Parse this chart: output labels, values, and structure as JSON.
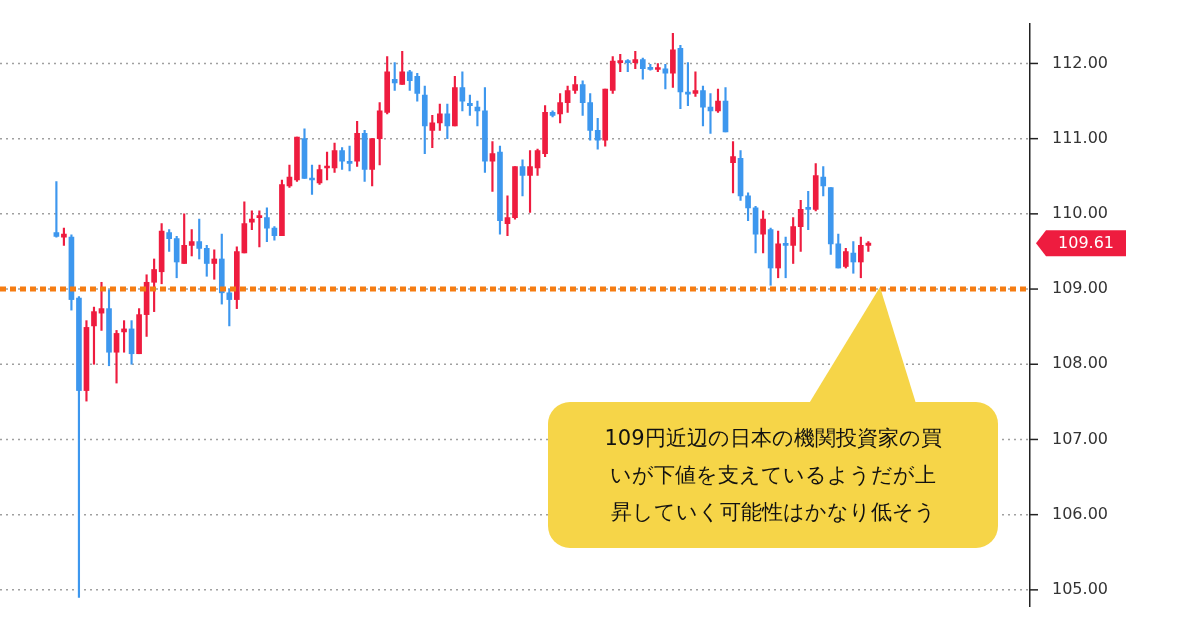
{
  "chart_data": {
    "type": "candlestick",
    "categories": [
      null,
      null,
      null,
      null,
      null,
      null,
      null,
      null,
      null,
      null,
      null,
      null,
      null,
      null,
      null,
      null,
      null,
      null,
      null,
      null,
      null,
      null,
      null,
      null,
      null,
      null,
      null,
      null,
      null,
      null,
      null,
      null,
      null,
      null,
      null,
      null,
      null,
      null,
      null,
      null,
      null,
      null,
      null,
      null,
      null,
      null,
      null,
      null,
      null,
      null,
      null,
      null,
      null,
      null,
      null,
      null,
      null,
      null,
      null,
      null,
      null,
      null,
      null,
      null,
      null,
      null,
      null,
      null,
      null,
      null,
      null,
      null,
      null,
      null,
      null,
      null,
      null,
      null,
      null,
      null,
      null,
      null,
      null,
      null,
      null,
      null,
      null,
      null,
      null,
      null,
      null,
      null,
      null,
      null,
      null,
      null,
      null,
      null,
      null,
      null,
      null,
      null,
      null,
      null,
      null,
      null,
      null,
      null,
      null,
      null,
      null,
      null,
      null,
      null,
      null,
      null,
      null,
      null,
      null,
      null,
      null,
      null,
      null,
      null,
      null,
      null,
      null,
      null,
      null,
      null,
      null,
      null,
      null,
      null,
      null,
      null,
      null
    ],
    "ohlc": [
      null,
      null,
      null,
      null,
      null,
      null,
      null,
      [
        109.75,
        110.43,
        109.69,
        109.7
      ],
      [
        109.69,
        109.81,
        109.58,
        109.73
      ],
      [
        109.69,
        109.72,
        108.72,
        108.86
      ],
      [
        108.88,
        108.9,
        104.9,
        107.65
      ],
      [
        107.65,
        108.58,
        107.51,
        108.49
      ],
      [
        108.51,
        108.76,
        108.0,
        108.7
      ],
      [
        108.68,
        109.09,
        108.45,
        108.74
      ],
      [
        108.74,
        108.99,
        107.98,
        108.16
      ],
      [
        108.16,
        108.45,
        107.75,
        108.41
      ],
      [
        108.43,
        108.58,
        108.16,
        108.47
      ],
      [
        108.47,
        108.58,
        108.0,
        108.14
      ],
      [
        108.14,
        108.74,
        108.14,
        108.66
      ],
      [
        108.66,
        109.19,
        108.37,
        109.09
      ],
      [
        109.09,
        109.4,
        108.7,
        109.26
      ],
      [
        109.23,
        109.87,
        109.07,
        109.77
      ],
      [
        109.75,
        109.79,
        109.5,
        109.67
      ],
      [
        109.67,
        109.7,
        109.15,
        109.36
      ],
      [
        109.34,
        110.0,
        109.34,
        109.58
      ],
      [
        109.58,
        109.79,
        109.44,
        109.63
      ],
      [
        109.63,
        109.93,
        109.4,
        109.54
      ],
      [
        109.54,
        109.58,
        109.17,
        109.34
      ],
      [
        109.34,
        109.52,
        109.13,
        109.4
      ],
      [
        109.4,
        109.73,
        108.8,
        108.95
      ],
      [
        108.95,
        109.0,
        108.51,
        108.86
      ],
      [
        108.86,
        109.56,
        108.74,
        109.5
      ],
      [
        109.48,
        110.16,
        109.48,
        109.87
      ],
      [
        109.89,
        110.04,
        109.79,
        109.93
      ],
      [
        109.95,
        110.04,
        109.56,
        109.97
      ],
      [
        109.95,
        110.08,
        109.63,
        109.81
      ],
      [
        109.81,
        109.83,
        109.65,
        109.71
      ],
      [
        109.71,
        110.45,
        109.71,
        110.39
      ],
      [
        110.37,
        110.65,
        110.35,
        110.49
      ],
      [
        110.45,
        111.02,
        110.43,
        111.02
      ],
      [
        111.0,
        111.13,
        110.47,
        110.47
      ],
      [
        110.47,
        110.65,
        110.26,
        110.45
      ],
      [
        110.41,
        110.65,
        110.39,
        110.59
      ],
      [
        110.61,
        110.82,
        110.45,
        110.63
      ],
      [
        110.61,
        110.94,
        110.55,
        110.84
      ],
      [
        110.84,
        110.88,
        110.59,
        110.7
      ],
      [
        110.7,
        110.9,
        110.57,
        110.67
      ],
      [
        110.7,
        111.23,
        110.63,
        111.07
      ],
      [
        111.07,
        111.11,
        110.43,
        110.59
      ],
      [
        110.59,
        111.0,
        110.37,
        111.0
      ],
      [
        111.0,
        111.48,
        110.65,
        111.37
      ],
      [
        111.35,
        112.09,
        111.33,
        111.89
      ],
      [
        111.79,
        112.01,
        111.64,
        111.74
      ],
      [
        111.72,
        112.16,
        111.72,
        111.89
      ],
      [
        111.89,
        111.91,
        111.64,
        111.77
      ],
      [
        111.83,
        111.87,
        111.5,
        111.6
      ],
      [
        111.58,
        111.7,
        110.8,
        111.17
      ],
      [
        111.11,
        111.31,
        110.88,
        111.21
      ],
      [
        111.21,
        111.46,
        111.11,
        111.33
      ],
      [
        111.33,
        111.46,
        111.0,
        111.17
      ],
      [
        111.17,
        111.83,
        111.17,
        111.68
      ],
      [
        111.68,
        111.89,
        111.37,
        111.5
      ],
      [
        111.47,
        111.58,
        111.31,
        111.44
      ],
      [
        111.42,
        111.5,
        111.17,
        111.37
      ],
      [
        111.37,
        111.68,
        110.55,
        110.7
      ],
      [
        110.7,
        110.96,
        110.3,
        110.8
      ],
      [
        110.82,
        110.9,
        109.73,
        109.91
      ],
      [
        109.87,
        110.24,
        109.71,
        109.95
      ],
      [
        109.95,
        110.63,
        109.93,
        110.63
      ],
      [
        110.63,
        110.72,
        110.24,
        110.51
      ],
      [
        110.51,
        110.84,
        110.02,
        110.63
      ],
      [
        110.61,
        110.86,
        110.51,
        110.84
      ],
      [
        110.8,
        111.44,
        110.76,
        111.35
      ],
      [
        111.35,
        111.37,
        111.29,
        111.31
      ],
      [
        111.33,
        111.6,
        111.21,
        111.48
      ],
      [
        111.48,
        111.7,
        111.35,
        111.64
      ],
      [
        111.64,
        111.83,
        111.6,
        111.72
      ],
      [
        111.72,
        111.77,
        111.31,
        111.48
      ],
      [
        111.48,
        111.6,
        110.98,
        111.11
      ],
      [
        111.11,
        111.27,
        110.86,
        110.98
      ],
      [
        110.98,
        111.66,
        110.9,
        111.66
      ],
      [
        111.64,
        112.09,
        111.6,
        112.03
      ],
      [
        112.01,
        112.12,
        111.89,
        112.03
      ],
      [
        112.03,
        112.05,
        111.89,
        112.01
      ],
      [
        112.01,
        112.16,
        111.93,
        112.05
      ],
      [
        112.05,
        112.07,
        111.79,
        111.93
      ],
      [
        111.95,
        111.99,
        111.91,
        111.92
      ],
      [
        111.92,
        112.0,
        111.89,
        111.94
      ],
      [
        111.93,
        111.99,
        111.66,
        111.87
      ],
      [
        111.87,
        112.4,
        111.68,
        112.18
      ],
      [
        112.2,
        112.24,
        111.4,
        111.62
      ],
      [
        111.62,
        112.01,
        111.44,
        111.59
      ],
      [
        111.6,
        111.89,
        111.56,
        111.64
      ],
      [
        111.64,
        111.7,
        111.17,
        111.42
      ],
      [
        111.42,
        111.6,
        111.07,
        111.37
      ],
      [
        111.37,
        111.66,
        111.35,
        111.5
      ],
      [
        111.5,
        111.68,
        111.09,
        111.09
      ],
      [
        110.68,
        110.96,
        110.28,
        110.76
      ],
      [
        110.74,
        110.84,
        110.18,
        110.24
      ],
      [
        110.24,
        110.28,
        109.91,
        110.08
      ],
      [
        110.08,
        110.1,
        109.48,
        109.73
      ],
      [
        109.73,
        110.04,
        109.48,
        109.93
      ],
      [
        109.79,
        109.81,
        109.05,
        109.28
      ],
      [
        109.28,
        109.77,
        109.15,
        109.6
      ],
      [
        109.6,
        109.69,
        109.15,
        109.58
      ],
      [
        109.58,
        109.95,
        109.34,
        109.83
      ],
      [
        109.83,
        110.18,
        109.5,
        110.06
      ],
      [
        110.08,
        110.3,
        109.79,
        110.06
      ],
      [
        110.06,
        110.67,
        110.04,
        110.51
      ],
      [
        110.49,
        110.63,
        110.24,
        110.37
      ],
      [
        110.35,
        110.35,
        109.46,
        109.6
      ],
      [
        109.6,
        109.73,
        109.28,
        109.28
      ],
      [
        109.3,
        109.54,
        109.28,
        109.5
      ],
      [
        109.48,
        109.63,
        109.21,
        109.36
      ],
      [
        109.36,
        109.69,
        109.15,
        109.58
      ],
      [
        109.58,
        109.63,
        109.5,
        109.61
      ],
      null,
      null,
      null,
      null,
      null,
      null,
      null,
      null,
      null,
      null,
      null,
      null,
      null,
      null,
      null,
      null,
      null,
      null,
      null,
      null,
      null
    ],
    "colors": [
      null,
      null,
      null,
      null,
      null,
      null,
      null,
      "#3d97ee",
      "#ee1c3f",
      "#3d97ee",
      "#3d97ee",
      "#ee1c3f",
      "#ee1c3f",
      "#ee1c3f",
      "#3d97ee",
      "#ee1c3f",
      "#ee1c3f",
      "#3d97ee",
      "#ee1c3f",
      "#ee1c3f",
      "#ee1c3f",
      "#ee1c3f",
      "#3d97ee",
      "#3d97ee",
      "#ee1c3f",
      "#ee1c3f",
      "#3d97ee",
      "#3d97ee",
      "#ee1c3f",
      "#3d97ee",
      "#3d97ee",
      "#ee1c3f",
      "#ee1c3f",
      "#ee1c3f",
      "#ee1c3f",
      "#3d97ee",
      "#3d97ee",
      "#ee1c3f",
      "#ee1c3f",
      "#ee1c3f",
      "#3d97ee",
      "#3d97ee",
      "#ee1c3f",
      "#ee1c3f",
      "#ee1c3f",
      "#3d97ee",
      "#3d97ee",
      "#ee1c3f",
      "#3d97ee",
      "#ee1c3f",
      "#ee1c3f",
      "#ee1c3f",
      "#3d97ee",
      "#ee1c3f",
      "#3d97ee",
      "#3d97ee",
      "#3d97ee",
      "#ee1c3f",
      "#ee1c3f",
      "#3d97ee",
      "#ee1c3f",
      "#3d97ee",
      "#3d97ee",
      "#3d97ee",
      "#3d97ee",
      "#ee1c3f",
      "#3d97ee",
      "#ee1c3f",
      "#ee1c3f",
      "#3d97ee",
      "#ee1c3f",
      "#ee1c3f",
      "#ee1c3f",
      "#3d97ee",
      "#ee1c3f",
      "#ee1c3f",
      "#ee1c3f",
      "#3d97ee",
      "#3d97ee",
      "#3d97ee",
      "#ee1c3f",
      "#ee1c3f",
      "#ee1c3f",
      "#3d97ee",
      "#ee1c3f",
      "#3d97ee",
      "#3d97ee",
      "#ee1c3f",
      "#3d97ee",
      "#ee1c3f",
      "#3d97ee",
      "#3d97ee",
      "#ee1c3f",
      "#3d97ee",
      "#3d97ee",
      "#ee1c3f",
      "#3d97ee",
      "#ee1c3f",
      "#3d97ee",
      "#3d97ee",
      "#3d97ee",
      "#ee1c3f",
      "#3d97ee",
      "#ee1c3f",
      "#3d97ee",
      "#ee1c3f",
      "#ee1c3f",
      "#3d97ee",
      "#ee1c3f",
      "#3d97ee",
      "#3d97ee",
      "#3d97ee",
      "#ee1c3f",
      "#3d97ee",
      "#ee1c3f",
      "#ee1c3f",
      null,
      null,
      null,
      null,
      null,
      null,
      null,
      null,
      null,
      null,
      null,
      null,
      null,
      null,
      null,
      null,
      null,
      null,
      null,
      null,
      null
    ],
    "ylim": [
      104.78,
      112.53
    ],
    "yticks": [
      {
        "value": 105,
        "label": "105.00"
      },
      {
        "value": 106,
        "label": "106.00"
      },
      {
        "value": 107,
        "label": "107.00"
      },
      {
        "value": 108,
        "label": "108.00"
      },
      {
        "value": 109,
        "label": "109.00"
      },
      {
        "value": 110,
        "label": "110.00"
      },
      {
        "value": 111,
        "label": "111.00"
      },
      {
        "value": 112,
        "label": "112.00"
      }
    ],
    "grid": "y",
    "tick_labels": "y",
    "ref_lines": [
      {
        "axis": "y",
        "value": 109,
        "color": "#f57c12",
        "line_style": "dotted"
      }
    ],
    "annotations": [
      "109.61",
      "109円近辺の日本の機関投資家の買いが下値を支えているようだが上昇していく可能性はかなり低そう"
    ]
  }
}
